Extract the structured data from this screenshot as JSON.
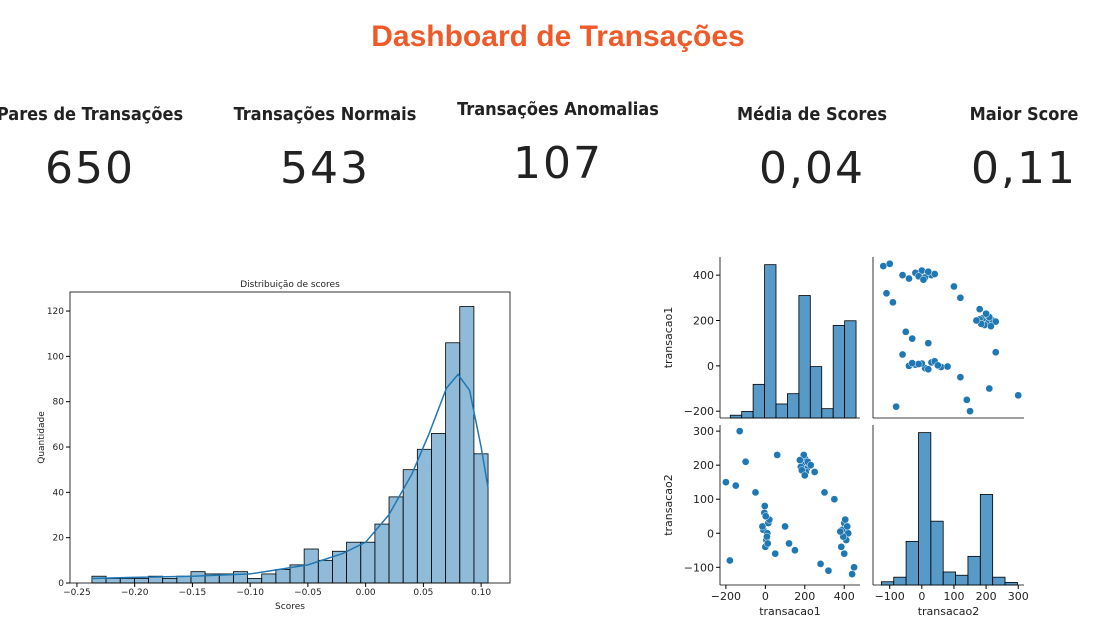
{
  "header": {
    "title": "Dashboard de Transações"
  },
  "kpis": [
    {
      "label": "Pares de Transações",
      "value": 650
    },
    {
      "label": "Transações Normais",
      "value": 543
    },
    {
      "label": "Transações Anomalias",
      "value": 107
    },
    {
      "label": "Média de Scores",
      "value": "0,04"
    },
    {
      "label": "Maior Score",
      "value": "0,11"
    }
  ],
  "chart_data": [
    {
      "type": "histogram",
      "title": "Distribuição de scores",
      "x_label": "Scores",
      "y_label": "Quantidade",
      "color": "#1f77b4",
      "bins": [
        -0.237,
        -0.22475,
        -0.2125,
        -0.20025,
        -0.188,
        -0.17575,
        -0.1635,
        -0.15125,
        -0.139,
        -0.12675,
        -0.1145,
        -0.10225,
        -0.09,
        -0.07775,
        -0.0655,
        -0.05325,
        -0.041,
        -0.02875,
        -0.0165,
        -0.00425,
        0.008,
        0.02025,
        0.0325,
        0.04475,
        0.057,
        0.06925,
        0.0815,
        0.09375,
        0.106
      ],
      "counts": [
        3,
        2,
        2,
        2,
        3,
        2,
        3,
        5,
        4,
        4,
        5,
        2,
        4,
        6,
        8,
        15,
        10,
        14,
        18,
        18,
        26,
        38,
        50,
        59,
        66,
        106,
        122,
        57
      ],
      "kde": {
        "x": [
          -0.237,
          -0.2,
          -0.15,
          -0.1,
          -0.05,
          -0.02,
          0.0,
          0.02,
          0.04,
          0.055,
          0.07,
          0.08,
          0.09,
          0.1,
          0.106
        ],
        "y": [
          2,
          2.5,
          3,
          4,
          8,
          13,
          18,
          30,
          48,
          66,
          86,
          92,
          85,
          60,
          42
        ]
      },
      "xlim": [
        -0.256,
        0.125
      ],
      "ylim": [
        0,
        128.4
      ],
      "xticks": [
        {
          "value": -0.25,
          "label": "−0.25"
        },
        {
          "value": -0.2,
          "label": "−0.20"
        },
        {
          "value": -0.15,
          "label": "−0.15"
        },
        {
          "value": -0.1,
          "label": "−0.10"
        },
        {
          "value": -0.05,
          "label": "−0.05"
        },
        {
          "value": 0,
          "label": "0.00"
        },
        {
          "value": 0.05,
          "label": "0.05"
        },
        {
          "value": 0.1,
          "label": "0.10"
        }
      ],
      "yticks": [
        0,
        20,
        40,
        60,
        80,
        100,
        120
      ]
    },
    {
      "type": "pairplot",
      "color": "#1f77b4",
      "variables": [
        "transacao1",
        "transacao2"
      ],
      "points": {
        "transacao1": [
          -10,
          5,
          15,
          -5,
          0,
          10,
          20,
          -15,
          8,
          -3,
          12,
          2,
          190,
          210,
          200,
          220,
          180,
          205,
          195,
          215,
          185,
          230,
          200,
          175,
          390,
          410,
          400,
          420,
          385,
          405,
          395,
          415,
          400,
          380,
          -200,
          -150,
          -100,
          -50,
          50,
          100,
          150,
          250,
          300,
          350,
          450,
          -180,
          60,
          120,
          320,
          -130,
          280,
          440
        ],
        "transacao2": [
          10,
          -20,
          30,
          60,
          -40,
          0,
          40,
          20,
          -10,
          80,
          -30,
          50,
          200,
          190,
          220,
          205,
          195,
          180,
          230,
          210,
          185,
          200,
          170,
          215,
          10,
          -20,
          30,
          0,
          -40,
          40,
          -10,
          20,
          -60,
          5,
          150,
          140,
          210,
          120,
          -60,
          20,
          -50,
          180,
          120,
          100,
          -100,
          -80,
          230,
          -30,
          -110,
          300,
          -90,
          -120
        ]
      },
      "hist": {
        "transacao1": {
          "bins": [
            -178,
            -120,
            -62,
            -4,
            54,
            112,
            170,
            228,
            286,
            344,
            402,
            460
          ],
          "counts": [
            3,
            7,
            36,
            164,
            15,
            26,
            131,
            55,
            10,
            99,
            104
          ]
        },
        "transacao2": {
          "bins": [
            -126,
            -87.5,
            -49,
            -10.5,
            28,
            66.5,
            105,
            143.5,
            182,
            220.5,
            259,
            297.5
          ],
          "counts": [
            5,
            12,
            67,
            234,
            98,
            20,
            15,
            44,
            139,
            12,
            4
          ]
        }
      },
      "lims": {
        "transacao1": [
          -230,
          480
        ],
        "transacao2": [
          -152,
          318
        ]
      },
      "ticks": {
        "transacao1": [
          {
            "value": -200,
            "label": "−200"
          },
          0,
          200,
          400
        ],
        "transacao2": [
          {
            "value": -100,
            "label": "−100"
          },
          0,
          100,
          200,
          300
        ]
      }
    }
  ]
}
